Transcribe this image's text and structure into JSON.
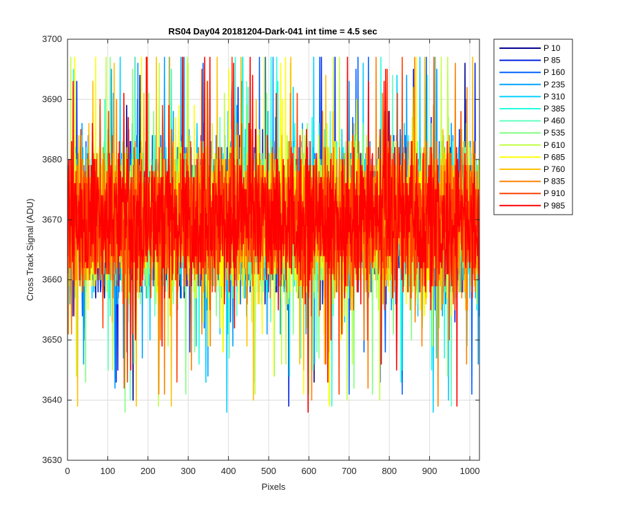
{
  "chart_data": {
    "type": "line",
    "title": "RS04 Day04 20181204-Dark-041 int time = 4.5 sec",
    "xlabel": "Pixels",
    "ylabel": "Cross Track Signal (ADU)",
    "xlim": [
      0,
      1024
    ],
    "ylim": [
      3630,
      3700
    ],
    "xticks": [
      "0",
      "100",
      "200",
      "300",
      "400",
      "500",
      "600",
      "700",
      "800",
      "900",
      "1000"
    ],
    "yticks": [
      "3630",
      "3640",
      "3650",
      "3660",
      "3670",
      "3680",
      "3690",
      "3700"
    ],
    "grid": true,
    "legend_position": "outside-right",
    "noise_model": {
      "mean": 3670,
      "min": 3638,
      "max": 3697,
      "std_approx": 6,
      "points_per_series": 1024
    },
    "series": [
      {
        "name": "P 10",
        "color": "#00008f"
      },
      {
        "name": "P 85",
        "color": "#0020df"
      },
      {
        "name": "P 160",
        "color": "#0060ff"
      },
      {
        "name": "P 235",
        "color": "#00a0ff"
      },
      {
        "name": "P 310",
        "color": "#00d0ff"
      },
      {
        "name": "P 385",
        "color": "#20ffdf"
      },
      {
        "name": "P 460",
        "color": "#60ffbf"
      },
      {
        "name": "P 535",
        "color": "#80ff80"
      },
      {
        "name": "P 610",
        "color": "#c0ff40"
      },
      {
        "name": "P 685",
        "color": "#ffff00"
      },
      {
        "name": "P 760",
        "color": "#ffc000"
      },
      {
        "name": "P 835",
        "color": "#ff8000"
      },
      {
        "name": "P 910",
        "color": "#ff4000"
      },
      {
        "name": "P 985",
        "color": "#ff0000"
      }
    ]
  }
}
